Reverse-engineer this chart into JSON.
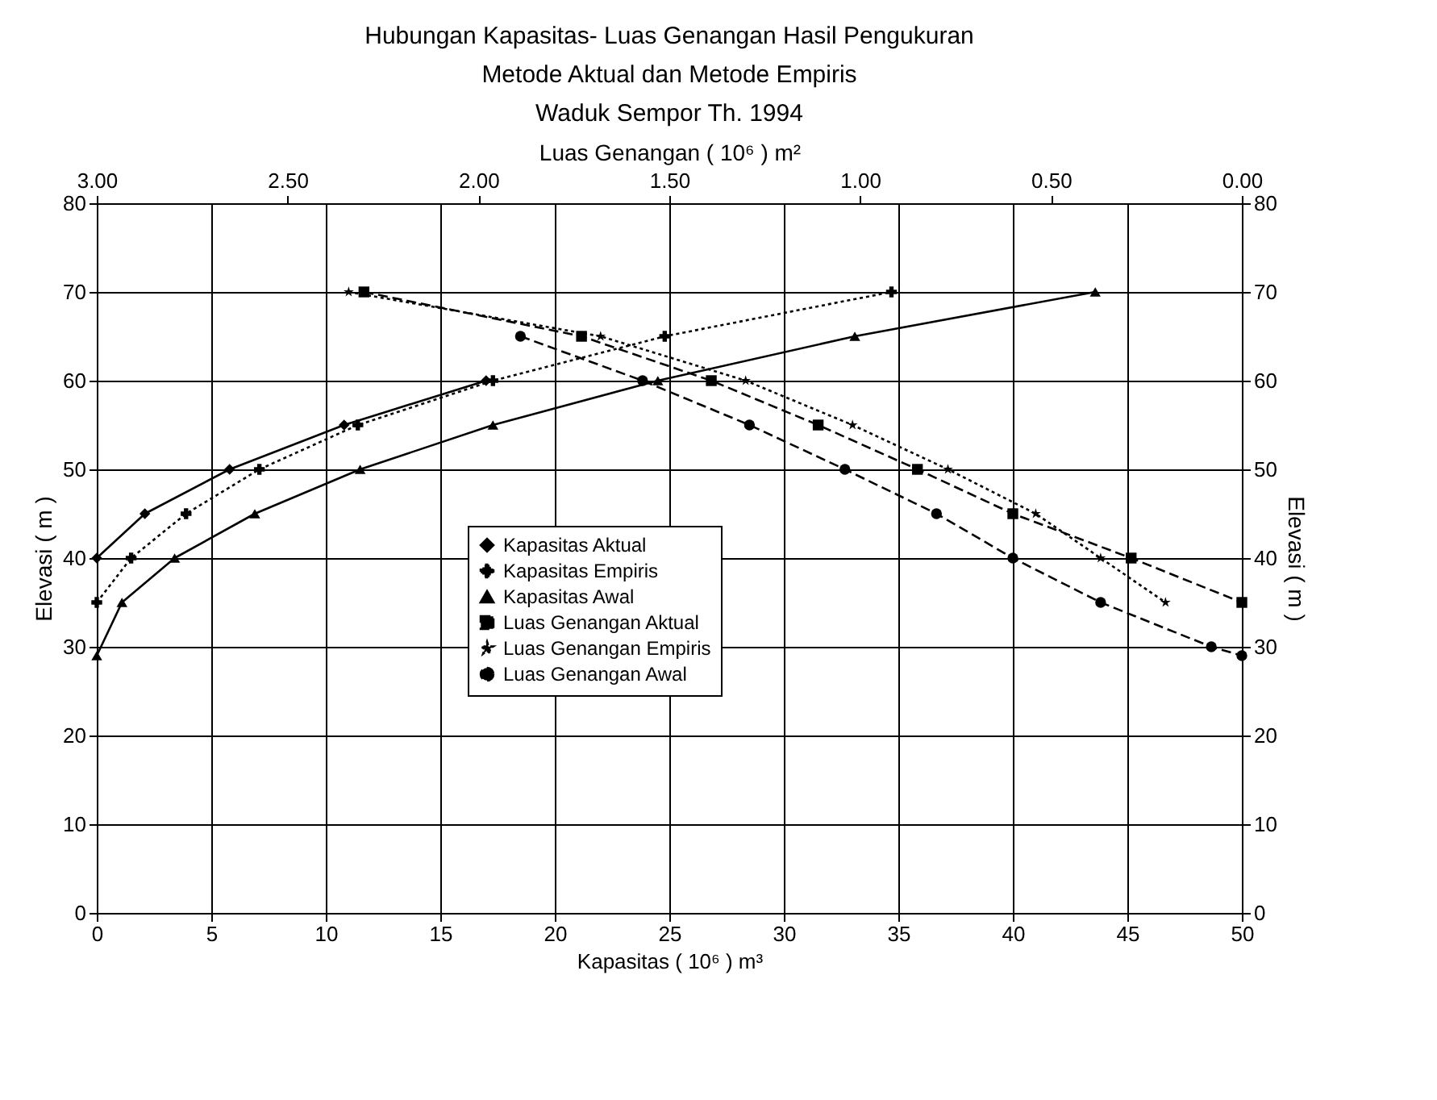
{
  "chart_data": {
    "type": "line",
    "title": [
      "Hubungan Kapasitas- Luas Genangan Hasil Pengukuran",
      "Metode Aktual dan Metode Empiris",
      "Waduk Sempor Th. 1994"
    ],
    "xlabel": "Kapasitas ( 10⁶ ) m³",
    "x2label": "Luas Genangan ( 10⁶ ) m²",
    "ylabel": "Elevasi ( m )",
    "y2label": "Elevasi ( m )",
    "xlim": [
      0,
      50
    ],
    "xticks": [
      0,
      5,
      10,
      15,
      20,
      25,
      30,
      35,
      40,
      45,
      50
    ],
    "x2lim": [
      3,
      0
    ],
    "x2ticks": [
      {
        "value": 3,
        "label": "3.00"
      },
      {
        "value": 2.5,
        "label": "2.50"
      },
      {
        "value": 2,
        "label": "2.00"
      },
      {
        "value": 1.5,
        "label": "1.50"
      },
      {
        "value": 1,
        "label": "1.00"
      },
      {
        "value": 0.5,
        "label": "0.50"
      },
      {
        "value": 0,
        "label": "0.00"
      }
    ],
    "ylim": [
      0,
      80
    ],
    "yticks": [
      0,
      10,
      20,
      30,
      40,
      50,
      60,
      70,
      80
    ],
    "y2lim": [
      0,
      80
    ],
    "y2ticks": [
      0,
      10,
      20,
      30,
      40,
      50,
      60,
      70,
      80
    ],
    "grid": true,
    "legend": "center",
    "series": [
      {
        "name": "Kapasitas Aktual",
        "color": "#000000",
        "marker": "diamond",
        "line_style": "solid",
        "x": [
          0,
          2.1,
          5.8,
          10.8,
          17.0
        ],
        "values": [
          40,
          45,
          50,
          55,
          60
        ]
      },
      {
        "name": "Kapasitas Empiris",
        "color": "#000000",
        "marker": "cross",
        "line_style": "dotted",
        "x": [
          0,
          1.5,
          3.9,
          7.1,
          11.4,
          17.3,
          24.8,
          34.7
        ],
        "values": [
          35,
          40,
          45,
          50,
          55,
          60,
          65,
          70
        ]
      },
      {
        "name": "Kapasitas Awal",
        "color": "#000000",
        "marker": "triangle",
        "line_style": "solid",
        "x": [
          0,
          1.1,
          3.4,
          6.9,
          11.5,
          17.3,
          24.5,
          33.1,
          43.6
        ],
        "values": [
          29,
          35,
          40,
          45,
          50,
          55,
          60,
          65,
          70
        ]
      },
      {
        "name": "Luas Genangan Aktual",
        "color": "#000000",
        "marker": "square",
        "line_style": "dashed",
        "axis": "x2",
        "x": [
          2.3,
          1.73,
          1.39,
          1.11,
          0.85,
          0.6,
          0.29,
          0.0
        ],
        "values": [
          70,
          65,
          60,
          55,
          50,
          45,
          40,
          35
        ]
      },
      {
        "name": "Luas Genangan Empiris",
        "color": "#000000",
        "marker": "star",
        "line_style": "dotted",
        "axis": "x2",
        "x": [
          2.34,
          1.68,
          1.3,
          1.02,
          0.77,
          0.54,
          0.37,
          0.2
        ],
        "values": [
          70,
          65,
          60,
          55,
          50,
          45,
          40,
          35
        ]
      },
      {
        "name": "Luas Genangan Awal",
        "color": "#000000",
        "marker": "circle",
        "line_style": "dashed",
        "axis": "x2",
        "x": [
          1.89,
          1.57,
          1.29,
          1.04,
          0.8,
          0.6,
          0.37,
          0.08,
          0.0
        ],
        "values": [
          65,
          60,
          55,
          50,
          45,
          40,
          35,
          30,
          29
        ]
      }
    ]
  }
}
